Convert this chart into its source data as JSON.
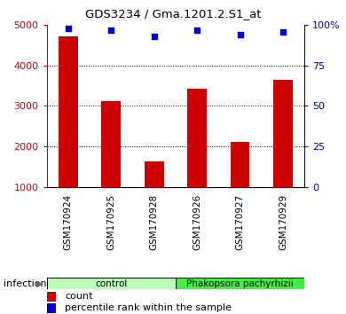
{
  "title": "GDS3234 / Gma.1201.2.S1_at",
  "samples": [
    "GSM170924",
    "GSM170925",
    "GSM170928",
    "GSM170926",
    "GSM170927",
    "GSM170929"
  ],
  "counts": [
    4720,
    3120,
    1620,
    3430,
    2100,
    3640
  ],
  "percentile_ranks": [
    98,
    97,
    93,
    97,
    94,
    96
  ],
  "ylim_left": [
    1000,
    5000
  ],
  "ylim_right": [
    0,
    100
  ],
  "yticks_left": [
    1000,
    2000,
    3000,
    4000,
    5000
  ],
  "yticks_right": [
    0,
    25,
    50,
    75,
    100
  ],
  "ytick_right_labels": [
    "0",
    "25",
    "50",
    "75",
    "100%"
  ],
  "bar_color": "#cc0000",
  "dot_color": "#0000cc",
  "bar_width": 0.45,
  "groups": [
    {
      "label": "control",
      "indices": [
        0,
        1,
        2
      ],
      "color": "#bbffbb"
    },
    {
      "label": "Phakopsora pachyrhizii",
      "indices": [
        3,
        4,
        5
      ],
      "color": "#44ee44"
    }
  ],
  "infection_label": "infection",
  "legend_items": [
    {
      "label": "count",
      "color": "#cc0000"
    },
    {
      "label": "percentile rank within the sample",
      "color": "#0000cc"
    }
  ],
  "background_color": "#ffffff",
  "grid_color": "#000000",
  "tick_label_area_color": "#cccccc",
  "left_axis_color": "#cc0000",
  "right_axis_color": "#0000cc",
  "cell_border_color": "#888888"
}
